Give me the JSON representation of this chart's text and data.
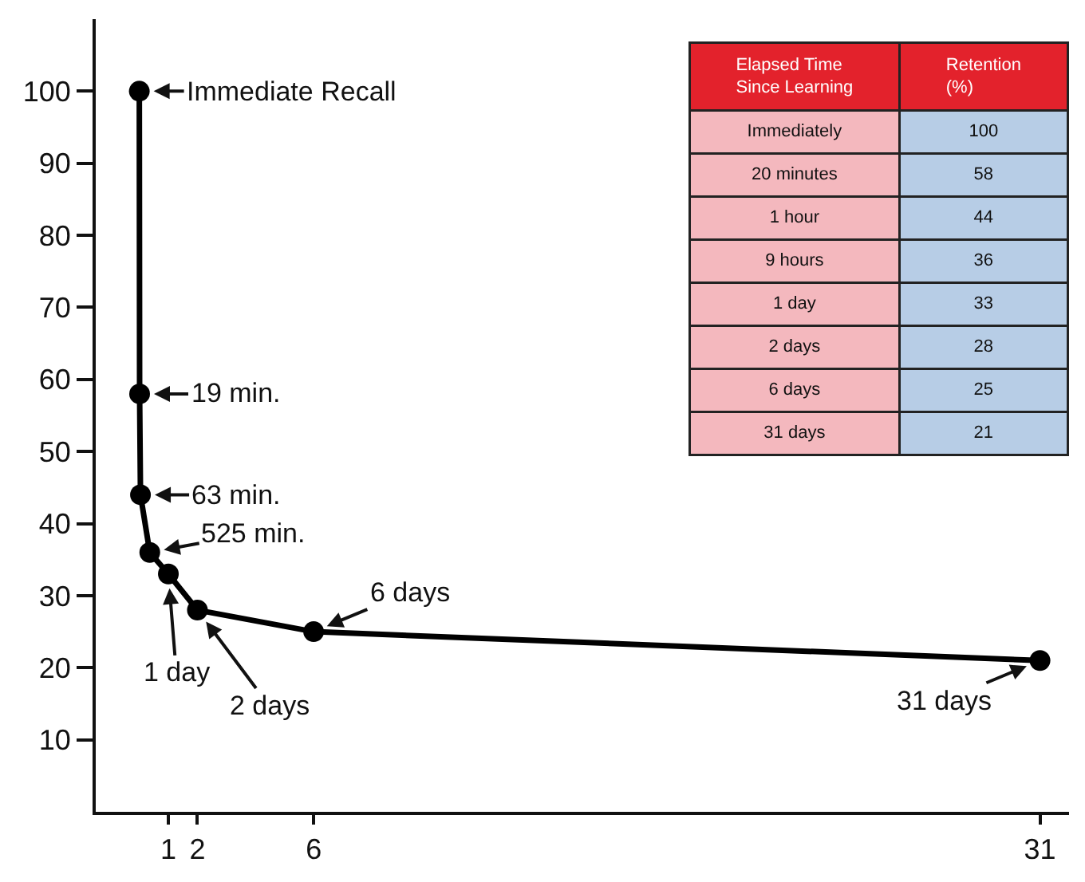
{
  "chart_data": [
    {
      "type": "line",
      "x": [
        0,
        0.01,
        0.04,
        0.36,
        1,
        2,
        6,
        31
      ],
      "values": [
        100,
        58,
        44,
        36,
        33,
        28,
        25,
        21
      ],
      "color": "#000000",
      "marker": "circle",
      "line_style": "solid",
      "legend": false,
      "xlim": [
        -1.5,
        32
      ],
      "xticks": [
        1,
        2,
        6,
        31
      ],
      "ylim": [
        0,
        110
      ],
      "yticks": [
        10,
        20,
        30,
        40,
        50,
        60,
        70,
        80,
        90,
        100
      ],
      "annotations": [
        {
          "text": "Immediate Recall",
          "x": 0,
          "y": 100
        },
        {
          "text": "19 min.",
          "x": 0.01,
          "y": 58
        },
        {
          "text": "63 min.",
          "x": 0.04,
          "y": 44
        },
        {
          "text": "525 min.",
          "x": 0.36,
          "y": 36
        },
        {
          "text": "1 day",
          "x": 1,
          "y": 33
        },
        {
          "text": "2 days",
          "x": 2,
          "y": 28
        },
        {
          "text": "6 days",
          "x": 6,
          "y": 25
        },
        {
          "text": "31 days",
          "x": 31,
          "y": 21
        }
      ]
    },
    {
      "type": "other",
      "data_labels": true,
      "categories": [
        "Immediately",
        "20 minutes",
        "1 hour",
        "9 hours",
        "1 day",
        "2 days",
        "6 days",
        "31 days"
      ],
      "values": [
        100,
        58,
        44,
        36,
        33,
        28,
        25,
        21
      ],
      "annotations": [
        "Elapsed Time Since Learning",
        "Retention (%)"
      ]
    }
  ]
}
